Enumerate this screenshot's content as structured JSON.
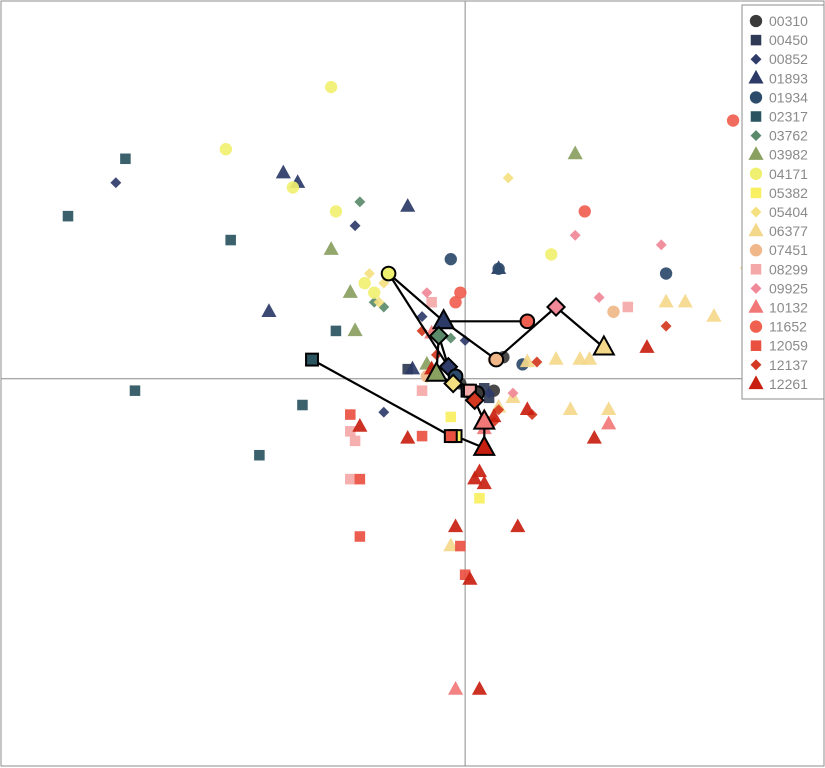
{
  "chart_data": {
    "type": "scatter",
    "xlim": [
      -9.7,
      7.5
    ],
    "ylim": [
      -8.1,
      7.9
    ],
    "axis_lines": {
      "x_zero": true,
      "y_zero": true
    },
    "legend": {
      "position": "top-right"
    },
    "series": [
      {
        "name": "00310",
        "shape": "circle",
        "color": "#3a3a3a",
        "points": [
          [
            0.1,
            -0.3
          ],
          [
            0.6,
            -0.25
          ],
          [
            0.8,
            0.45
          ],
          [
            -0.1,
            -0.1
          ]
        ],
        "centroid": [
          0.25,
          -0.3
        ]
      },
      {
        "name": "00450",
        "shape": "square",
        "color": "#2e3a55",
        "points": [
          [
            -1.2,
            0.2
          ],
          [
            0.4,
            -0.2
          ],
          [
            0.5,
            -0.4
          ]
        ],
        "centroid": [
          0.05,
          -0.25
        ]
      },
      {
        "name": "00852",
        "shape": "diamond",
        "color": "#2f3c6a",
        "points": [
          [
            -7.3,
            4.1
          ],
          [
            -2.3,
            3.2
          ],
          [
            -1.7,
            -0.7
          ],
          [
            0,
            0.8
          ],
          [
            -0.9,
            1.3
          ],
          [
            0.5,
            -0.3
          ]
        ],
        "centroid": [
          -0.35,
          0.25
        ]
      },
      {
        "name": "01893",
        "shape": "triangle",
        "color": "#2b3a66",
        "points": [
          [
            -3.8,
            4.3
          ],
          [
            -3.5,
            4.1
          ],
          [
            -1.2,
            3.6
          ],
          [
            0.7,
            2.3
          ],
          [
            -4.1,
            1.4
          ],
          [
            -1.1,
            0.2
          ]
        ],
        "centroid": [
          -0.45,
          1.2
        ]
      },
      {
        "name": "01934",
        "shape": "circle",
        "color": "#2c4a6a",
        "points": [
          [
            -0.3,
            2.5
          ],
          [
            0.7,
            2.3
          ],
          [
            1.2,
            0.3
          ],
          [
            4.2,
            2.2
          ]
        ],
        "centroid": [
          -0.2,
          0.05
        ]
      },
      {
        "name": "02317",
        "shape": "square",
        "color": "#2a5560",
        "points": [
          [
            -7.1,
            4.6
          ],
          [
            -8.3,
            3.4
          ],
          [
            -4.9,
            2.9
          ],
          [
            -2.7,
            1.0
          ],
          [
            -6.9,
            -0.25
          ],
          [
            -3.4,
            -0.55
          ],
          [
            -4.3,
            -1.6
          ]
        ],
        "centroid": [
          -3.2,
          0.4
        ]
      },
      {
        "name": "03762",
        "shape": "diamond",
        "color": "#5a8a6a",
        "points": [
          [
            -2.2,
            3.7
          ],
          [
            -1.9,
            1.6
          ],
          [
            -1.7,
            1.5
          ],
          [
            -0.3,
            0.85
          ]
        ],
        "centroid": [
          -0.55,
          0.9
        ]
      },
      {
        "name": "03982",
        "shape": "triangle",
        "color": "#8aa060",
        "points": [
          [
            2.3,
            4.7
          ],
          [
            -2.8,
            2.7
          ],
          [
            -2.4,
            1.8
          ],
          [
            -2.3,
            1.0
          ],
          [
            -0.8,
            0.3
          ]
        ],
        "centroid": [
          -0.6,
          0.1
        ]
      },
      {
        "name": "04171",
        "shape": "circle",
        "color": "#f0f070",
        "points": [
          [
            -2.8,
            6.1
          ],
          [
            -5.0,
            4.8
          ],
          [
            -3.6,
            4.0
          ],
          [
            -2.7,
            3.5
          ],
          [
            -1.9,
            1.8
          ],
          [
            1.8,
            2.6
          ],
          [
            -2.1,
            2.0
          ]
        ],
        "centroid": [
          -1.6,
          2.2
        ]
      },
      {
        "name": "05382",
        "shape": "square",
        "color": "#f8f060",
        "points": [
          [
            0.3,
            -2.5
          ],
          [
            -0.3,
            -0.8
          ]
        ],
        "centroid": [
          -0.2,
          -1.2
        ]
      },
      {
        "name": "05404",
        "shape": "diamond",
        "color": "#f4e080",
        "points": [
          [
            0.9,
            4.2
          ],
          [
            -2.0,
            2.2
          ],
          [
            -1.7,
            2.0
          ],
          [
            -1.8,
            1.6
          ]
        ],
        "centroid": [
          -0.25,
          -0.1
        ]
      },
      {
        "name": "06377",
        "shape": "triangle",
        "color": "#f4d88a",
        "points": [
          [
            5.9,
            2.4
          ],
          [
            4.2,
            1.6
          ],
          [
            4.6,
            1.6
          ],
          [
            5.2,
            1.3
          ],
          [
            1.9,
            0.4
          ],
          [
            2.4,
            0.4
          ],
          [
            2.6,
            0.4
          ],
          [
            1.0,
            -0.4
          ],
          [
            2.2,
            -0.65
          ],
          [
            0.7,
            -0.6
          ],
          [
            -0.3,
            -3.5
          ],
          [
            1.3,
            0.35
          ],
          [
            3.0,
            -0.65
          ]
        ],
        "centroid": [
          2.9,
          0.65
        ]
      },
      {
        "name": "07451",
        "shape": "circle",
        "color": "#f0b888",
        "points": [
          [
            3.1,
            1.4
          ],
          [
            0.6,
            0.4
          ],
          [
            -0.8,
            0.05
          ]
        ],
        "centroid": [
          0.65,
          0.4
        ]
      },
      {
        "name": "08299",
        "shape": "square",
        "color": "#f4a8a8",
        "points": [
          [
            -0.7,
            1.6
          ],
          [
            3.4,
            1.5
          ],
          [
            -2.4,
            -1.1
          ],
          [
            -2.3,
            -1.3
          ],
          [
            -2.4,
            -2.1
          ],
          [
            -0.9,
            -0.25
          ]
        ],
        "centroid": [
          0.1,
          -0.25
        ]
      },
      {
        "name": "09925",
        "shape": "diamond",
        "color": "#f08898",
        "points": [
          [
            2.3,
            3.0
          ],
          [
            4.1,
            2.8
          ],
          [
            2.8,
            1.7
          ],
          [
            -0.8,
            1.8
          ],
          [
            1.0,
            -0.3
          ]
        ],
        "centroid": [
          1.9,
          1.5
        ]
      },
      {
        "name": "10132",
        "shape": "triangle",
        "color": "#f27878",
        "points": [
          [
            3.0,
            -0.95
          ],
          [
            -0.2,
            -6.5
          ],
          [
            -0.7,
            0.95
          ],
          [
            0.4,
            -1.05
          ]
        ],
        "centroid": [
          0.4,
          -0.9
        ]
      },
      {
        "name": "11652",
        "shape": "circle",
        "color": "#f06050",
        "points": [
          [
            5.6,
            5.4
          ],
          [
            2.5,
            3.5
          ],
          [
            -0.2,
            1.6
          ],
          [
            -0.1,
            1.8
          ]
        ],
        "centroid": [
          1.3,
          1.2
        ]
      },
      {
        "name": "12059",
        "shape": "square",
        "color": "#ea5040",
        "points": [
          [
            -2.4,
            -0.75
          ],
          [
            -2.2,
            -2.1
          ],
          [
            -2.2,
            -3.3
          ],
          [
            -0.1,
            -3.5
          ],
          [
            0,
            -4.1
          ],
          [
            -0.9,
            -1.2
          ]
        ],
        "centroid": [
          -0.3,
          -1.2
        ]
      },
      {
        "name": "12137",
        "shape": "diamond",
        "color": "#d43820",
        "points": [
          [
            4.2,
            1.1
          ],
          [
            -0.9,
            1.0
          ],
          [
            1.4,
            -0.75
          ],
          [
            -0.6,
            0.5
          ],
          [
            0.7,
            -0.65
          ],
          [
            0.4,
            -0.8
          ],
          [
            0.6,
            -0.9
          ],
          [
            1.5,
            0.35
          ]
        ],
        "centroid": [
          0.2,
          -0.45
        ]
      },
      {
        "name": "12261",
        "shape": "triangle",
        "color": "#c82010",
        "points": [
          [
            3.8,
            0.65
          ],
          [
            2.7,
            -1.25
          ],
          [
            -2.2,
            -1.0
          ],
          [
            -1.2,
            -1.25
          ],
          [
            0.3,
            -1.95
          ],
          [
            0.2,
            -2.1
          ],
          [
            0.4,
            -2.2
          ],
          [
            -0.2,
            -3.1
          ],
          [
            1.1,
            -3.1
          ],
          [
            0.1,
            -4.2
          ],
          [
            0.3,
            -6.5
          ],
          [
            1.3,
            -0.65
          ],
          [
            0.6,
            -0.8
          ],
          [
            -0.7,
            0.2
          ],
          [
            0.4,
            -0.8
          ]
        ],
        "centroid": [
          0.4,
          -1.45
        ]
      }
    ],
    "centroid_path": [
      [
        -3.2,
        0.4
      ],
      [
        -0.3,
        -1.2
      ],
      [
        -0.2,
        -1.2
      ],
      [
        0.4,
        -1.45
      ],
      [
        0.4,
        -0.9
      ],
      [
        0.2,
        -0.45
      ],
      [
        0.1,
        -0.25
      ],
      [
        -0.25,
        -0.1
      ],
      [
        -0.6,
        0.1
      ],
      [
        -0.55,
        0.9
      ],
      [
        -0.35,
        0.25
      ],
      [
        -1.6,
        2.2
      ],
      [
        -0.45,
        1.2
      ],
      [
        1.3,
        1.2
      ],
      [
        -0.45,
        1.2
      ],
      [
        0.65,
        0.4
      ],
      [
        1.9,
        1.5
      ],
      [
        2.9,
        0.65
      ]
    ]
  }
}
